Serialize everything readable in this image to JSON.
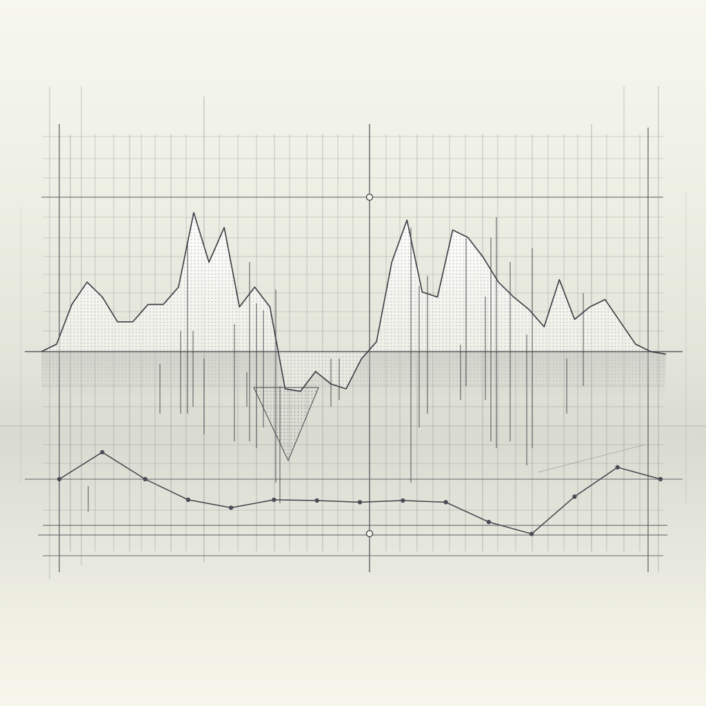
{
  "colors": {
    "background_top": "#f6f7ee",
    "background_mid": "#d9dbd1",
    "line": "#3f4148",
    "grid": "#585a60",
    "area_fill": "#ffffff"
  },
  "chart_data": [
    {
      "type": "area",
      "title": "",
      "xlabel": "",
      "ylabel": "",
      "grid": true,
      "legend": "none",
      "axis_labels_visible": false,
      "x": [
        0,
        1,
        2,
        3,
        4,
        5,
        6,
        7,
        8,
        9,
        10,
        11,
        12,
        13,
        14,
        15,
        16,
        17,
        18,
        19,
        20,
        21,
        22,
        23,
        24,
        25,
        26,
        27,
        28,
        29,
        30,
        31,
        32,
        33,
        34,
        35,
        36,
        37,
        38,
        39,
        40,
        41
      ],
      "series": [
        {
          "values": [
            0.0,
            0.03,
            0.19,
            0.28,
            0.22,
            0.12,
            0.12,
            0.19,
            0.19,
            0.26,
            0.56,
            0.36,
            0.5,
            0.18,
            0.26,
            0.18,
            -0.15,
            -0.16,
            -0.08,
            -0.13,
            -0.15,
            -0.03,
            0.04,
            0.36,
            0.53,
            0.24,
            0.22,
            0.49,
            0.46,
            0.38,
            0.28,
            0.22,
            0.17,
            0.1,
            0.29,
            0.13,
            0.18,
            0.21,
            0.12,
            0.03,
            0.0,
            -0.01
          ]
        }
      ],
      "ylim": [
        -0.9,
        1.0
      ]
    },
    {
      "type": "line",
      "title": "",
      "xlabel": "",
      "ylabel": "",
      "markers": true,
      "x": [
        0,
        1,
        2,
        3,
        4,
        5,
        6,
        7,
        8,
        9,
        10,
        11,
        12,
        13,
        14
      ],
      "series": [
        {
          "values": [
            0.0,
            0.34,
            0.0,
            -0.26,
            -0.36,
            -0.26,
            -0.27,
            -0.29,
            -0.27,
            -0.29,
            -0.54,
            -0.69,
            -0.22,
            0.15,
            0.0
          ]
        }
      ],
      "ylim": [
        -1.0,
        0.6
      ]
    }
  ]
}
